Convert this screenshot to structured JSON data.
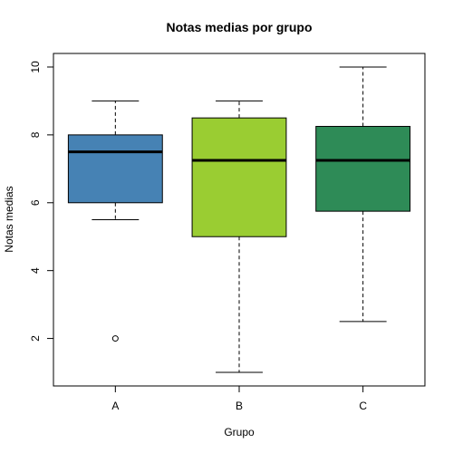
{
  "chart_data": {
    "type": "boxplot",
    "title": "Notas medias por grupo",
    "xlabel": "Grupo",
    "ylabel": "Notas medias",
    "ylim": [
      0.6,
      10.4
    ],
    "yticks": [
      2,
      4,
      6,
      8,
      10
    ],
    "grid": false,
    "groups": [
      {
        "name": "A",
        "color": "#4682B4",
        "whisker_low": 5.5,
        "q1": 6.0,
        "median": 7.5,
        "q3": 8.0,
        "whisker_high": 9.0,
        "outliers": [
          2.0
        ]
      },
      {
        "name": "B",
        "color": "#9ACD32",
        "whisker_low": 1.0,
        "q1": 5.0,
        "median": 7.25,
        "q3": 8.5,
        "whisker_high": 9.0,
        "outliers": []
      },
      {
        "name": "C",
        "color": "#2E8B57",
        "whisker_low": 2.5,
        "q1": 5.75,
        "median": 7.25,
        "q3": 8.25,
        "whisker_high": 10.0,
        "outliers": []
      }
    ]
  }
}
